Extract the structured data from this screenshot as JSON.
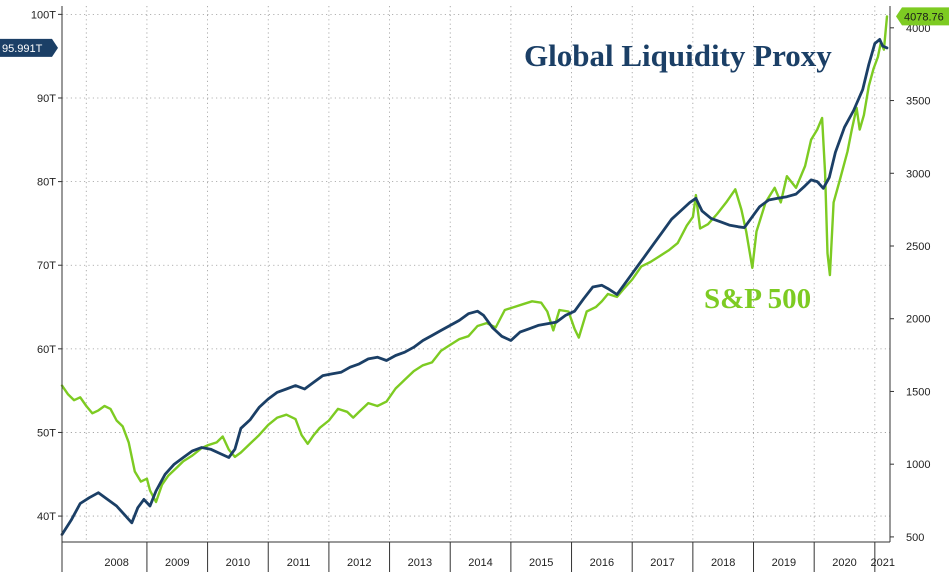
{
  "chart_data": {
    "type": "line",
    "title": "",
    "xlabel": "",
    "x_ticks": [
      "2008",
      "2009",
      "2010",
      "2011",
      "2012",
      "2013",
      "2014",
      "2015",
      "2016",
      "2017",
      "2018",
      "2019",
      "2020",
      "2021"
    ],
    "x_range": [
      2007.6,
      2021.25
    ],
    "y_left": {
      "ticks": [
        {
          "value": 40,
          "label": "40T"
        },
        {
          "value": 50,
          "label": "50T"
        },
        {
          "value": 60,
          "label": "60T"
        },
        {
          "value": 70,
          "label": "70T"
        },
        {
          "value": 80,
          "label": "80T"
        },
        {
          "value": 90,
          "label": "90T"
        },
        {
          "value": 100,
          "label": "100T"
        }
      ],
      "range": [
        36.9,
        101
      ]
    },
    "y_right": {
      "ticks": [
        {
          "value": 500,
          "label": "500"
        },
        {
          "value": 1000,
          "label": "1000"
        },
        {
          "value": 1500,
          "label": "1500"
        },
        {
          "value": 2000,
          "label": "2000"
        },
        {
          "value": 2500,
          "label": "2500"
        },
        {
          "value": 3000,
          "label": "3000"
        },
        {
          "value": 3500,
          "label": "3500"
        },
        {
          "value": 4000,
          "label": "4000"
        }
      ],
      "range": [
        465,
        4150
      ]
    },
    "grid": true,
    "series": [
      {
        "name": "Global Liquidity Proxy",
        "axis": "left",
        "color": "#1b3f66",
        "last_value_label": "95.991T",
        "points": [
          [
            2007.6,
            37.8
          ],
          [
            2007.75,
            39.5
          ],
          [
            2007.9,
            41.5
          ],
          [
            2008.05,
            42.2
          ],
          [
            2008.2,
            42.8
          ],
          [
            2008.35,
            42.0
          ],
          [
            2008.5,
            41.2
          ],
          [
            2008.65,
            40.0
          ],
          [
            2008.75,
            39.2
          ],
          [
            2008.85,
            41.0
          ],
          [
            2008.95,
            42.0
          ],
          [
            2009.05,
            41.2
          ],
          [
            2009.15,
            43.0
          ],
          [
            2009.3,
            45.0
          ],
          [
            2009.45,
            46.2
          ],
          [
            2009.6,
            47.0
          ],
          [
            2009.75,
            47.8
          ],
          [
            2009.9,
            48.2
          ],
          [
            2010.05,
            48.0
          ],
          [
            2010.2,
            47.5
          ],
          [
            2010.35,
            47.0
          ],
          [
            2010.45,
            48.0
          ],
          [
            2010.55,
            50.5
          ],
          [
            2010.7,
            51.5
          ],
          [
            2010.85,
            53.0
          ],
          [
            2011.0,
            54.0
          ],
          [
            2011.15,
            54.8
          ],
          [
            2011.3,
            55.2
          ],
          [
            2011.45,
            55.6
          ],
          [
            2011.6,
            55.2
          ],
          [
            2011.75,
            56.0
          ],
          [
            2011.9,
            56.8
          ],
          [
            2012.05,
            57.0
          ],
          [
            2012.2,
            57.2
          ],
          [
            2012.35,
            57.8
          ],
          [
            2012.5,
            58.2
          ],
          [
            2012.65,
            58.8
          ],
          [
            2012.8,
            59.0
          ],
          [
            2012.95,
            58.6
          ],
          [
            2013.1,
            59.2
          ],
          [
            2013.25,
            59.6
          ],
          [
            2013.4,
            60.2
          ],
          [
            2013.55,
            61.0
          ],
          [
            2013.7,
            61.6
          ],
          [
            2013.85,
            62.2
          ],
          [
            2014.0,
            62.8
          ],
          [
            2014.15,
            63.4
          ],
          [
            2014.3,
            64.2
          ],
          [
            2014.45,
            64.5
          ],
          [
            2014.55,
            64.0
          ],
          [
            2014.7,
            62.5
          ],
          [
            2014.85,
            61.5
          ],
          [
            2015.0,
            61.0
          ],
          [
            2015.15,
            62.0
          ],
          [
            2015.3,
            62.4
          ],
          [
            2015.45,
            62.8
          ],
          [
            2015.6,
            63.0
          ],
          [
            2015.75,
            63.2
          ],
          [
            2015.9,
            64.0
          ],
          [
            2016.05,
            64.5
          ],
          [
            2016.2,
            66.0
          ],
          [
            2016.35,
            67.4
          ],
          [
            2016.5,
            67.6
          ],
          [
            2016.6,
            67.2
          ],
          [
            2016.75,
            66.5
          ],
          [
            2016.9,
            68.0
          ],
          [
            2017.05,
            69.5
          ],
          [
            2017.2,
            71.0
          ],
          [
            2017.35,
            72.5
          ],
          [
            2017.5,
            74.0
          ],
          [
            2017.65,
            75.5
          ],
          [
            2017.8,
            76.5
          ],
          [
            2017.95,
            77.5
          ],
          [
            2018.05,
            78.0
          ],
          [
            2018.15,
            76.5
          ],
          [
            2018.3,
            75.6
          ],
          [
            2018.45,
            75.2
          ],
          [
            2018.6,
            74.8
          ],
          [
            2018.75,
            74.6
          ],
          [
            2018.85,
            74.5
          ],
          [
            2018.95,
            75.5
          ],
          [
            2019.1,
            77.0
          ],
          [
            2019.25,
            77.8
          ],
          [
            2019.4,
            78.0
          ],
          [
            2019.55,
            78.2
          ],
          [
            2019.7,
            78.5
          ],
          [
            2019.85,
            79.5
          ],
          [
            2019.95,
            80.2
          ],
          [
            2020.05,
            80.0
          ],
          [
            2020.15,
            79.2
          ],
          [
            2020.25,
            80.5
          ],
          [
            2020.35,
            83.5
          ],
          [
            2020.5,
            86.5
          ],
          [
            2020.65,
            88.5
          ],
          [
            2020.8,
            91.0
          ],
          [
            2020.9,
            94.0
          ],
          [
            2021.0,
            96.5
          ],
          [
            2021.08,
            97.0
          ],
          [
            2021.13,
            96.2
          ],
          [
            2021.2,
            95.991
          ]
        ]
      },
      {
        "name": "S&P 500",
        "axis": "right",
        "color": "#7dcb22",
        "last_value_label": "4078.76",
        "points": [
          [
            2007.6,
            1540
          ],
          [
            2007.7,
            1480
          ],
          [
            2007.8,
            1440
          ],
          [
            2007.9,
            1460
          ],
          [
            2008.0,
            1400
          ],
          [
            2008.1,
            1350
          ],
          [
            2008.2,
            1370
          ],
          [
            2008.3,
            1400
          ],
          [
            2008.4,
            1380
          ],
          [
            2008.5,
            1300
          ],
          [
            2008.6,
            1260
          ],
          [
            2008.7,
            1150
          ],
          [
            2008.8,
            950
          ],
          [
            2008.9,
            880
          ],
          [
            2009.0,
            900
          ],
          [
            2009.05,
            820
          ],
          [
            2009.15,
            740
          ],
          [
            2009.25,
            860
          ],
          [
            2009.35,
            920
          ],
          [
            2009.5,
            980
          ],
          [
            2009.6,
            1020
          ],
          [
            2009.75,
            1060
          ],
          [
            2009.9,
            1110
          ],
          [
            2010.0,
            1130
          ],
          [
            2010.15,
            1150
          ],
          [
            2010.25,
            1190
          ],
          [
            2010.35,
            1100
          ],
          [
            2010.45,
            1050
          ],
          [
            2010.55,
            1080
          ],
          [
            2010.7,
            1140
          ],
          [
            2010.85,
            1200
          ],
          [
            2011.0,
            1270
          ],
          [
            2011.15,
            1320
          ],
          [
            2011.3,
            1340
          ],
          [
            2011.45,
            1310
          ],
          [
            2011.55,
            1200
          ],
          [
            2011.65,
            1140
          ],
          [
            2011.75,
            1200
          ],
          [
            2011.85,
            1250
          ],
          [
            2012.0,
            1300
          ],
          [
            2012.15,
            1380
          ],
          [
            2012.3,
            1360
          ],
          [
            2012.4,
            1320
          ],
          [
            2012.5,
            1360
          ],
          [
            2012.65,
            1420
          ],
          [
            2012.8,
            1400
          ],
          [
            2012.95,
            1430
          ],
          [
            2013.1,
            1520
          ],
          [
            2013.25,
            1580
          ],
          [
            2013.4,
            1640
          ],
          [
            2013.55,
            1680
          ],
          [
            2013.7,
            1700
          ],
          [
            2013.85,
            1780
          ],
          [
            2014.0,
            1820
          ],
          [
            2014.15,
            1860
          ],
          [
            2014.3,
            1880
          ],
          [
            2014.45,
            1950
          ],
          [
            2014.6,
            1970
          ],
          [
            2014.75,
            1940
          ],
          [
            2014.9,
            2060
          ],
          [
            2015.05,
            2080
          ],
          [
            2015.2,
            2100
          ],
          [
            2015.35,
            2120
          ],
          [
            2015.5,
            2110
          ],
          [
            2015.6,
            2050
          ],
          [
            2015.7,
            1920
          ],
          [
            2015.8,
            2060
          ],
          [
            2015.95,
            2050
          ],
          [
            2016.05,
            1930
          ],
          [
            2016.12,
            1870
          ],
          [
            2016.25,
            2050
          ],
          [
            2016.4,
            2080
          ],
          [
            2016.5,
            2120
          ],
          [
            2016.6,
            2170
          ],
          [
            2016.75,
            2150
          ],
          [
            2016.85,
            2200
          ],
          [
            2017.0,
            2270
          ],
          [
            2017.15,
            2360
          ],
          [
            2017.3,
            2390
          ],
          [
            2017.45,
            2430
          ],
          [
            2017.6,
            2470
          ],
          [
            2017.75,
            2520
          ],
          [
            2017.9,
            2640
          ],
          [
            2018.0,
            2700
          ],
          [
            2018.05,
            2850
          ],
          [
            2018.12,
            2620
          ],
          [
            2018.25,
            2650
          ],
          [
            2018.4,
            2720
          ],
          [
            2018.55,
            2800
          ],
          [
            2018.7,
            2890
          ],
          [
            2018.8,
            2750
          ],
          [
            2018.88,
            2600
          ],
          [
            2018.98,
            2350
          ],
          [
            2019.05,
            2600
          ],
          [
            2019.2,
            2800
          ],
          [
            2019.35,
            2900
          ],
          [
            2019.45,
            2800
          ],
          [
            2019.55,
            2980
          ],
          [
            2019.7,
            2900
          ],
          [
            2019.85,
            3050
          ],
          [
            2019.95,
            3230
          ],
          [
            2020.05,
            3300
          ],
          [
            2020.13,
            3380
          ],
          [
            2020.18,
            3000
          ],
          [
            2020.22,
            2450
          ],
          [
            2020.26,
            2300
          ],
          [
            2020.32,
            2800
          ],
          [
            2020.42,
            2950
          ],
          [
            2020.55,
            3150
          ],
          [
            2020.62,
            3300
          ],
          [
            2020.7,
            3450
          ],
          [
            2020.75,
            3300
          ],
          [
            2020.82,
            3400
          ],
          [
            2020.9,
            3600
          ],
          [
            2020.98,
            3720
          ],
          [
            2021.05,
            3800
          ],
          [
            2021.1,
            3900
          ],
          [
            2021.15,
            3850
          ],
          [
            2021.2,
            4078.76
          ]
        ]
      }
    ],
    "annotations": [
      {
        "text": "Global Liquidity Proxy",
        "color": "#1b3f66"
      },
      {
        "text": "S&P 500",
        "color": "#7dcb22"
      }
    ]
  }
}
